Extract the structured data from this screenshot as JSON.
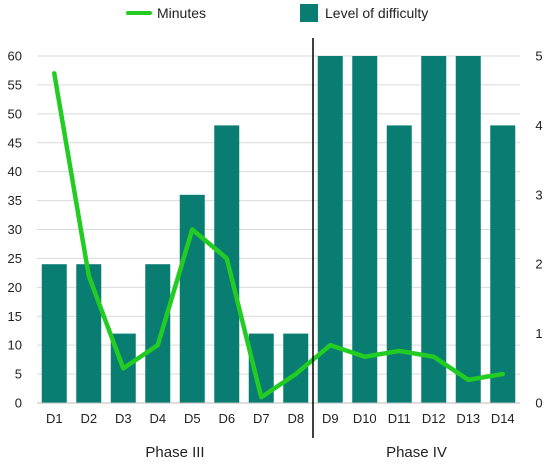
{
  "chart_data": {
    "type": "bar",
    "categories": [
      "D1",
      "D2",
      "D3",
      "D4",
      "D5",
      "D6",
      "D7",
      "D8",
      "D9",
      "D10",
      "D11",
      "D12",
      "D13",
      "D14"
    ],
    "series": [
      {
        "name": "Level of difficulty",
        "type": "bar",
        "axis": "right",
        "color": "#0a7d72",
        "values": [
          2,
          2,
          1,
          2,
          3,
          4,
          1,
          1,
          5,
          5,
          4,
          5,
          5,
          4
        ]
      },
      {
        "name": "Minutes",
        "type": "line",
        "axis": "left",
        "color": "#22cc22",
        "values": [
          57,
          22,
          6,
          10,
          30,
          25,
          1,
          5,
          10,
          8,
          9,
          8,
          4,
          5
        ]
      }
    ],
    "ylim_left": [
      0,
      60
    ],
    "yticks_left": [
      "0",
      "5",
      "10",
      "15",
      "20",
      "25",
      "30",
      "35",
      "40",
      "45",
      "50",
      "55",
      "60"
    ],
    "ylim_right": [
      0,
      5
    ],
    "yticks_right": [
      "0",
      "1",
      "2",
      "3",
      "4",
      "5"
    ],
    "phases": [
      {
        "label": "Phase III",
        "from": 0,
        "to": 7
      },
      {
        "label": "Phase IV",
        "from": 8,
        "to": 13
      }
    ],
    "legend": {
      "position": "top-center"
    }
  }
}
